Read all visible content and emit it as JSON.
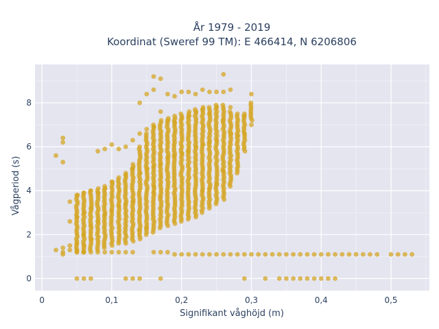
{
  "title_line1": "År 1979 - 2019",
  "title_line2": "Koordinat (Sweref 99 TM): E 466414, N 6206806",
  "colors": {
    "plot_bg": "#e5e5f0",
    "grid": "#ffffff",
    "marker": "#d4a524",
    "text": "#2a3f5f"
  },
  "chart_data": {
    "type": "scatter",
    "xlabel": "Signifikant våghöjd (m)",
    "ylabel": "Vågperiod (s)",
    "xlim": [
      -0.01,
      0.555
    ],
    "ylim": [
      -0.55,
      9.75
    ],
    "xticks": [
      0,
      0.1,
      0.2,
      0.3,
      0.4,
      0.5
    ],
    "xtick_labels": [
      "0",
      "0,1",
      "0,2",
      "0,3",
      "0,4",
      "0,5"
    ],
    "yticks": [
      0,
      2,
      4,
      6,
      8
    ],
    "ytick_labels": [
      "0",
      "2",
      "4",
      "6",
      "8"
    ],
    "grid": true,
    "series": [
      {
        "x": [
          0.02,
          0.03,
          0.03,
          0.03,
          0.03,
          0.04,
          0.04,
          0.04,
          0.04,
          0.05,
          0.05,
          0.05,
          0.05,
          0.05,
          0.06,
          0.06,
          0.06,
          0.06,
          0.06,
          0.06,
          0.07,
          0.07,
          0.07,
          0.07,
          0.07,
          0.08,
          0.08,
          0.08,
          0.08,
          0.09,
          0.09,
          0.09,
          0.09,
          0.1,
          0.1,
          0.1,
          0.1,
          0.11,
          0.11,
          0.11,
          0.11,
          0.12,
          0.12,
          0.12,
          0.12,
          0.13,
          0.13,
          0.13,
          0.13,
          0.14,
          0.14,
          0.14,
          0.14,
          0.15,
          0.15,
          0.15,
          0.15,
          0.16,
          0.16,
          0.16,
          0.16,
          0.16,
          0.17,
          0.17,
          0.17,
          0.17,
          0.18,
          0.18,
          0.18,
          0.18,
          0.19,
          0.19,
          0.19,
          0.19,
          0.2,
          0.2,
          0.2,
          0.2,
          0.21,
          0.21,
          0.21,
          0.21,
          0.22,
          0.22,
          0.22,
          0.22,
          0.23,
          0.23,
          0.23,
          0.23,
          0.24,
          0.24,
          0.24,
          0.24,
          0.25,
          0.25,
          0.25,
          0.25,
          0.26,
          0.26,
          0.26,
          0.26,
          0.27,
          0.27,
          0.27,
          0.27,
          0.28,
          0.28,
          0.28,
          0.29,
          0.29,
          0.29,
          0.3,
          0.3,
          0.3,
          0.31,
          0.32,
          0.33,
          0.34,
          0.35,
          0.36,
          0.37,
          0.38,
          0.39,
          0.4,
          0.41,
          0.42,
          0.43,
          0.44,
          0.45,
          0.46,
          0.47,
          0.48,
          0.5,
          0.51,
          0.52,
          0.53,
          0.05,
          0.06,
          0.07,
          0.12,
          0.13,
          0.14,
          0.17,
          0.29,
          0.32,
          0.34,
          0.35,
          0.36,
          0.37,
          0.38,
          0.39,
          0.4,
          0.41,
          0.42,
          0.02,
          0.03,
          0.03,
          0.16,
          0.17,
          0.16,
          0.26,
          0.23,
          0.24,
          0.25
        ],
        "y": [
          5.6,
          6.4,
          6.2,
          5.3,
          1.4,
          3.5,
          2.6,
          1.5,
          1.3,
          3.8,
          2.8,
          1.6,
          1.3,
          1.2,
          3.9,
          3.0,
          2.0,
          1.5,
          1.2,
          1.2,
          4.0,
          3.2,
          2.4,
          1.8,
          1.2,
          5.8,
          3.9,
          2.6,
          1.2,
          5.9,
          4.1,
          2.9,
          1.2,
          6.1,
          4.4,
          3.1,
          1.2,
          5.9,
          4.6,
          3.3,
          1.2,
          6.0,
          4.7,
          3.4,
          1.2,
          6.3,
          5.0,
          3.5,
          1.2,
          8.0,
          6.6,
          4.8,
          2.2,
          8.4,
          6.8,
          5.0,
          2.3,
          9.2,
          8.6,
          6.9,
          5.1,
          1.2,
          9.1,
          7.6,
          5.2,
          1.2,
          8.4,
          7.2,
          5.5,
          1.2,
          8.3,
          7.1,
          5.6,
          1.1,
          8.5,
          7.3,
          5.7,
          1.1,
          8.5,
          7.4,
          5.8,
          1.1,
          8.4,
          7.6,
          6.0,
          1.1,
          8.6,
          7.7,
          6.1,
          1.1,
          8.5,
          7.5,
          6.2,
          1.1,
          8.5,
          7.8,
          6.3,
          1.1,
          9.3,
          8.5,
          7.2,
          1.1,
          8.6,
          7.8,
          6.6,
          1.1,
          7.5,
          6.5,
          1.1,
          7.4,
          6.6,
          1.1,
          8.4,
          7.0,
          1.1,
          1.1,
          1.1,
          1.1,
          1.1,
          1.1,
          1.1,
          1.1,
          1.1,
          1.1,
          1.1,
          1.1,
          1.1,
          1.1,
          1.1,
          1.1,
          1.1,
          1.1,
          1.1,
          1.1,
          1.1,
          1.1,
          1.1,
          0,
          0,
          0,
          0,
          0,
          0,
          0,
          0,
          0,
          0,
          0,
          0,
          0,
          0,
          0,
          0,
          0,
          0,
          1.3,
          1.2,
          1.1,
          3.9,
          3.7,
          4.2,
          4.9,
          4.0,
          4.1,
          4.3
        ]
      }
    ],
    "notes_bands": [
      {
        "x": 0.05,
        "ymin": 1.2,
        "ymax": 3.8
      },
      {
        "x": 0.06,
        "ymin": 1.2,
        "ymax": 3.9
      },
      {
        "x": 0.07,
        "ymin": 1.3,
        "ymax": 4.0
      },
      {
        "x": 0.08,
        "ymin": 1.3,
        "ymax": 4.1
      },
      {
        "x": 0.09,
        "ymin": 1.4,
        "ymax": 4.2
      },
      {
        "x": 0.1,
        "ymin": 1.5,
        "ymax": 4.4
      },
      {
        "x": 0.11,
        "ymin": 1.6,
        "ymax": 4.5
      },
      {
        "x": 0.12,
        "ymin": 1.6,
        "ymax": 4.8
      },
      {
        "x": 0.13,
        "ymin": 1.7,
        "ymax": 5.2
      },
      {
        "x": 0.14,
        "ymin": 1.8,
        "ymax": 6.0
      },
      {
        "x": 0.15,
        "ymin": 2.0,
        "ymax": 6.6
      },
      {
        "x": 0.16,
        "ymin": 2.1,
        "ymax": 7.0
      },
      {
        "x": 0.17,
        "ymin": 2.3,
        "ymax": 7.2
      },
      {
        "x": 0.18,
        "ymin": 2.4,
        "ymax": 7.3
      },
      {
        "x": 0.19,
        "ymin": 2.5,
        "ymax": 7.4
      },
      {
        "x": 0.2,
        "ymin": 2.6,
        "ymax": 7.5
      },
      {
        "x": 0.21,
        "ymin": 2.7,
        "ymax": 7.6
      },
      {
        "x": 0.22,
        "ymin": 2.8,
        "ymax": 7.7
      },
      {
        "x": 0.23,
        "ymin": 3.0,
        "ymax": 7.8
      },
      {
        "x": 0.24,
        "ymin": 3.2,
        "ymax": 7.8
      },
      {
        "x": 0.25,
        "ymin": 3.4,
        "ymax": 7.9
      },
      {
        "x": 0.26,
        "ymin": 3.6,
        "ymax": 7.9
      },
      {
        "x": 0.27,
        "ymin": 4.2,
        "ymax": 7.6
      },
      {
        "x": 0.28,
        "ymin": 4.8,
        "ymax": 7.4
      },
      {
        "x": 0.29,
        "ymin": 5.8,
        "ymax": 7.5
      },
      {
        "x": 0.3,
        "ymin": 7.2,
        "ymax": 8.0
      }
    ]
  }
}
